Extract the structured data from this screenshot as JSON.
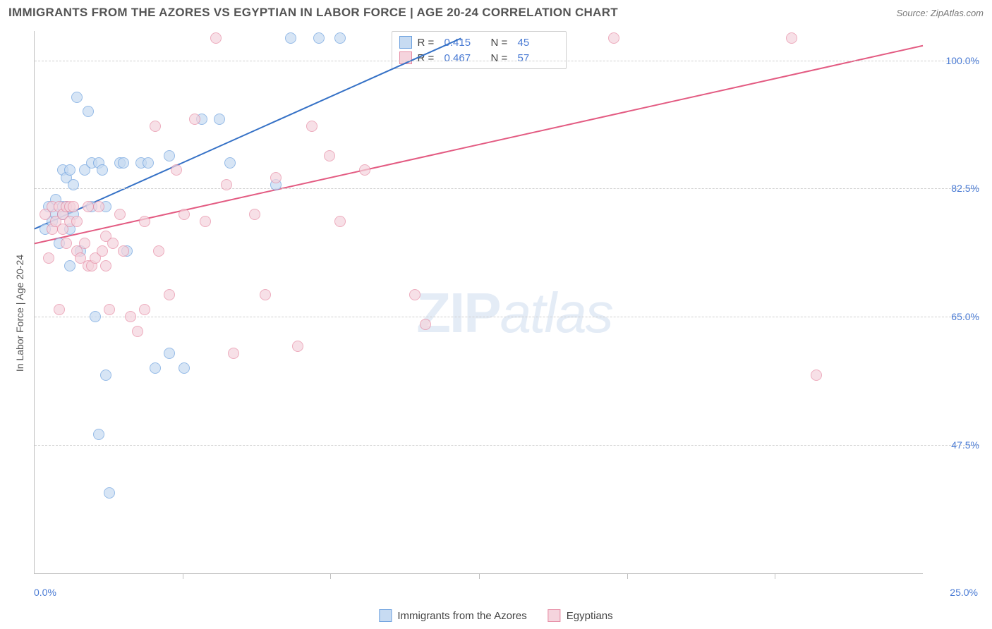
{
  "header": {
    "title": "IMMIGRANTS FROM THE AZORES VS EGYPTIAN IN LABOR FORCE | AGE 20-24 CORRELATION CHART",
    "source": "Source: ZipAtlas.com"
  },
  "watermark": {
    "part1": "ZIP",
    "part2": "atlas"
  },
  "chart": {
    "type": "scatter",
    "y_axis_title": "In Labor Force | Age 20-24",
    "xlim": [
      0,
      25
    ],
    "ylim": [
      30,
      104
    ],
    "x_min_label": "0.0%",
    "x_max_label": "25.0%",
    "y_ticks": [
      {
        "v": 47.5,
        "label": "47.5%"
      },
      {
        "v": 65.0,
        "label": "65.0%"
      },
      {
        "v": 82.5,
        "label": "82.5%"
      },
      {
        "v": 100.0,
        "label": "100.0%"
      }
    ],
    "x_tick_positions": [
      4.17,
      8.33,
      12.5,
      16.67,
      20.83
    ],
    "grid_color": "#cfcfcf",
    "axis_color": "#c0c0c0",
    "background_color": "#ffffff",
    "series": [
      {
        "key": "azores",
        "label": "Immigrants from the Azores",
        "fill": "#c7dbf2",
        "stroke": "#6a9fde",
        "line_color": "#3571c6",
        "R": "0.415",
        "N": "45",
        "trend": {
          "x1": 0,
          "y1": 77,
          "x2": 12,
          "y2": 103
        },
        "points": [
          [
            0.3,
            77
          ],
          [
            0.4,
            80
          ],
          [
            0.5,
            78
          ],
          [
            0.6,
            79
          ],
          [
            0.6,
            81
          ],
          [
            0.7,
            75
          ],
          [
            0.8,
            79
          ],
          [
            0.8,
            80
          ],
          [
            0.8,
            85
          ],
          [
            0.9,
            80
          ],
          [
            0.9,
            84
          ],
          [
            1.0,
            77
          ],
          [
            1.0,
            72
          ],
          [
            1.0,
            85
          ],
          [
            1.1,
            79
          ],
          [
            1.1,
            83
          ],
          [
            1.2,
            95
          ],
          [
            1.3,
            74
          ],
          [
            1.4,
            85
          ],
          [
            1.5,
            93
          ],
          [
            1.6,
            80
          ],
          [
            1.6,
            86
          ],
          [
            1.7,
            65
          ],
          [
            1.8,
            49
          ],
          [
            1.8,
            86
          ],
          [
            1.9,
            85
          ],
          [
            2.0,
            80
          ],
          [
            2.0,
            57
          ],
          [
            2.1,
            41
          ],
          [
            2.4,
            86
          ],
          [
            2.5,
            86
          ],
          [
            2.6,
            74
          ],
          [
            3.0,
            86
          ],
          [
            3.2,
            86
          ],
          [
            3.4,
            58
          ],
          [
            3.8,
            87
          ],
          [
            3.8,
            60
          ],
          [
            4.2,
            58
          ],
          [
            4.7,
            92
          ],
          [
            5.2,
            92
          ],
          [
            5.5,
            86
          ],
          [
            6.8,
            83
          ],
          [
            7.2,
            103
          ],
          [
            8.0,
            103
          ],
          [
            8.6,
            103
          ]
        ]
      },
      {
        "key": "egyptians",
        "label": "Egyptians",
        "fill": "#f5d4dd",
        "stroke": "#e68aa3",
        "line_color": "#e35b82",
        "R": "0.467",
        "N": "57",
        "trend": {
          "x1": 0,
          "y1": 75,
          "x2": 25,
          "y2": 102
        },
        "points": [
          [
            0.3,
            79
          ],
          [
            0.4,
            73
          ],
          [
            0.5,
            80
          ],
          [
            0.5,
            77
          ],
          [
            0.6,
            78
          ],
          [
            0.7,
            80
          ],
          [
            0.7,
            66
          ],
          [
            0.8,
            79
          ],
          [
            0.8,
            77
          ],
          [
            0.9,
            80
          ],
          [
            0.9,
            75
          ],
          [
            1.0,
            78
          ],
          [
            1.0,
            80
          ],
          [
            1.1,
            80
          ],
          [
            1.2,
            78
          ],
          [
            1.2,
            74
          ],
          [
            1.3,
            73
          ],
          [
            1.4,
            75
          ],
          [
            1.5,
            80
          ],
          [
            1.5,
            72
          ],
          [
            1.6,
            72
          ],
          [
            1.7,
            73
          ],
          [
            1.8,
            80
          ],
          [
            1.9,
            74
          ],
          [
            2.0,
            76
          ],
          [
            2.0,
            72
          ],
          [
            2.1,
            66
          ],
          [
            2.2,
            75
          ],
          [
            2.4,
            79
          ],
          [
            2.5,
            74
          ],
          [
            2.7,
            65
          ],
          [
            2.9,
            63
          ],
          [
            3.1,
            78
          ],
          [
            3.1,
            66
          ],
          [
            3.4,
            91
          ],
          [
            3.5,
            74
          ],
          [
            3.8,
            68
          ],
          [
            4.0,
            85
          ],
          [
            4.2,
            79
          ],
          [
            4.5,
            92
          ],
          [
            4.8,
            78
          ],
          [
            5.1,
            103
          ],
          [
            5.4,
            83
          ],
          [
            5.6,
            60
          ],
          [
            6.2,
            79
          ],
          [
            6.5,
            68
          ],
          [
            6.8,
            84
          ],
          [
            7.4,
            61
          ],
          [
            7.8,
            91
          ],
          [
            8.3,
            87
          ],
          [
            8.6,
            78
          ],
          [
            9.3,
            85
          ],
          [
            10.7,
            68
          ],
          [
            11.0,
            64
          ],
          [
            16.3,
            103
          ],
          [
            21.3,
            103
          ],
          [
            22.0,
            57
          ]
        ]
      }
    ],
    "legend_labels": {
      "R": "R =",
      "N": "N ="
    }
  }
}
